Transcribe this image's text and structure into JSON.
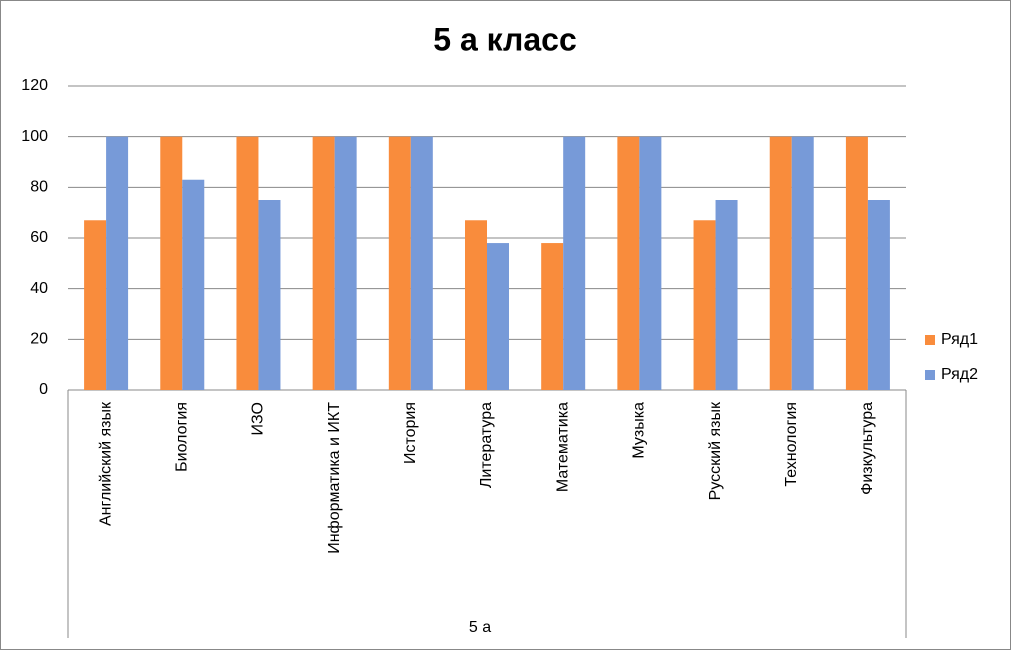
{
  "chart_data": {
    "type": "bar",
    "title": "5 а класс",
    "categories": [
      "Английский язык",
      "Биология",
      "ИЗО",
      "Информатика и ИКТ",
      "История",
      "Литература",
      "Математика",
      "Музыка",
      "Русский язык",
      "Технология",
      "Физкультура"
    ],
    "category_group": "5 а",
    "series": [
      {
        "name": "Ряд1",
        "color": "#f98c3c",
        "values": [
          67,
          100,
          100,
          100,
          100,
          67,
          58,
          100,
          67,
          100,
          100
        ]
      },
      {
        "name": "Ряд2",
        "color": "#779ad8",
        "values": [
          100,
          83,
          75,
          100,
          100,
          58,
          100,
          100,
          75,
          100,
          75
        ]
      }
    ],
    "ylim": [
      0,
      120
    ],
    "yticks": [
      0,
      20,
      40,
      60,
      80,
      100,
      120
    ],
    "grid": true,
    "legend": "right"
  }
}
